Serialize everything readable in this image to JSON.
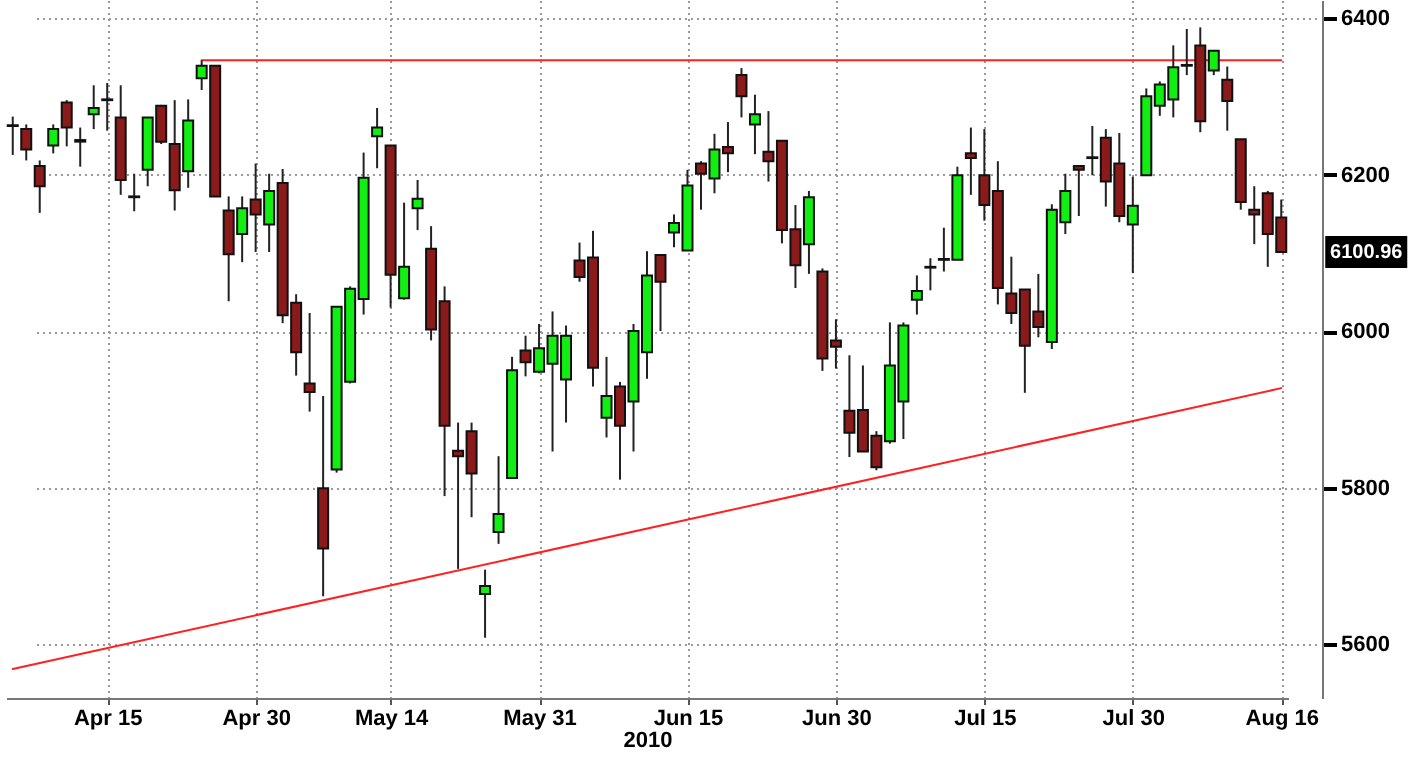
{
  "chart_data": {
    "type": "candlestick",
    "xlabel": "2010",
    "categories": [
      null,
      null,
      null,
      null,
      null,
      null,
      null,
      "Apr 15",
      null,
      null,
      null,
      null,
      null,
      null,
      null,
      null,
      null,
      null,
      "Apr 30",
      null,
      null,
      null,
      null,
      null,
      null,
      null,
      null,
      null,
      "May 14",
      null,
      null,
      null,
      null,
      null,
      null,
      null,
      null,
      null,
      null,
      "May 31",
      null,
      null,
      null,
      null,
      null,
      null,
      null,
      null,
      null,
      null,
      "Jun 15",
      null,
      null,
      null,
      null,
      null,
      null,
      null,
      null,
      null,
      null,
      "Jun 30",
      null,
      null,
      null,
      null,
      null,
      null,
      null,
      null,
      null,
      null,
      "Jul 15",
      null,
      null,
      null,
      null,
      null,
      null,
      null,
      null,
      null,
      null,
      "Jul 30",
      null,
      null,
      null,
      null,
      null,
      null,
      null,
      null,
      null,
      null,
      "Aug 16"
    ],
    "ohlc": [
      [
        6262,
        6274,
        6225,
        6263
      ],
      [
        6258,
        6264,
        6218,
        6232
      ],
      [
        6211,
        6218,
        6151,
        6185
      ],
      [
        6237,
        6264,
        6227,
        6258
      ],
      [
        6292,
        6295,
        6236,
        6260
      ],
      [
        6244,
        6260,
        6210,
        6242
      ],
      [
        6277,
        6314,
        6258,
        6285
      ],
      [
        6295,
        6317,
        6256,
        6296
      ],
      [
        6273,
        6314,
        6174,
        6193
      ],
      [
        6171,
        6201,
        6153,
        6172
      ],
      [
        6206,
        6273,
        6185,
        6273
      ],
      [
        6288,
        6289,
        6239,
        6242
      ],
      [
        6239,
        6295,
        6154,
        6180
      ],
      [
        6204,
        6296,
        6183,
        6269
      ],
      [
        6323,
        6346,
        6308,
        6339
      ],
      [
        6339,
        6339,
        6172,
        6172
      ],
      [
        6154,
        6172,
        6038,
        6098
      ],
      [
        6124,
        6172,
        6088,
        6157
      ],
      [
        6168,
        6214,
        6101,
        6149
      ],
      [
        6136,
        6201,
        6101,
        6179
      ],
      [
        6189,
        6207,
        6010,
        6020
      ],
      [
        6036,
        6047,
        5943,
        5973
      ],
      [
        5933,
        6023,
        5897,
        5922
      ],
      [
        5799,
        5917,
        5661,
        5722
      ],
      [
        5823,
        6031,
        5819,
        6031
      ],
      [
        5935,
        6057,
        5933,
        6054
      ],
      [
        6041,
        6228,
        6021,
        6196
      ],
      [
        6249,
        6285,
        6208,
        6260
      ],
      [
        6237,
        6237,
        6030,
        6072
      ],
      [
        6042,
        6164,
        6040,
        6082
      ],
      [
        6157,
        6193,
        6129,
        6169
      ],
      [
        6105,
        6134,
        5988,
        6002
      ],
      [
        6038,
        6057,
        5789,
        5879
      ],
      [
        5847,
        5883,
        5696,
        5840
      ],
      [
        5872,
        5883,
        5762,
        5818
      ],
      [
        5664,
        5695,
        5608,
        5674
      ],
      [
        5743,
        5840,
        5728,
        5766
      ],
      [
        5812,
        5967,
        5812,
        5950
      ],
      [
        5975,
        5994,
        5942,
        5960
      ],
      [
        5948,
        6009,
        5946,
        5978
      ],
      [
        5958,
        6025,
        5846,
        5994
      ],
      [
        5938,
        6007,
        5883,
        5994
      ],
      [
        6090,
        6113,
        6063,
        6069
      ],
      [
        6094,
        6128,
        5929,
        5953
      ],
      [
        5889,
        5967,
        5864,
        5917
      ],
      [
        5929,
        5935,
        5810,
        5879
      ],
      [
        5910,
        6009,
        5846,
        6000
      ],
      [
        5973,
        6102,
        5939,
        6071
      ],
      [
        6097,
        6097,
        6000,
        6063
      ],
      [
        6126,
        6149,
        6107,
        6138
      ],
      [
        6103,
        6206,
        6103,
        6186
      ],
      [
        6214,
        6217,
        6155,
        6201
      ],
      [
        6195,
        6252,
        6176,
        6232
      ],
      [
        6235,
        6267,
        6203,
        6227
      ],
      [
        6327,
        6336,
        6273,
        6300
      ],
      [
        6264,
        6302,
        6226,
        6277
      ],
      [
        6229,
        6281,
        6191,
        6217
      ],
      [
        6243,
        6243,
        6112,
        6129
      ],
      [
        6130,
        6161,
        6055,
        6084
      ],
      [
        6111,
        6179,
        6073,
        6171
      ],
      [
        6076,
        6080,
        5949,
        5965
      ],
      [
        5988,
        6015,
        5952,
        5980
      ],
      [
        5898,
        5969,
        5839,
        5870
      ],
      [
        5899,
        5956,
        5846,
        5846
      ],
      [
        5866,
        5872,
        5822,
        5826
      ],
      [
        5859,
        6011,
        5856,
        5956
      ],
      [
        5910,
        6011,
        5862,
        6007
      ],
      [
        6040,
        6071,
        6021,
        6051
      ],
      [
        6082,
        6093,
        6052,
        6081
      ],
      [
        6092,
        6132,
        6076,
        6091
      ],
      [
        6091,
        6210,
        6091,
        6199
      ],
      [
        6227,
        6260,
        6174,
        6221
      ],
      [
        6199,
        6258,
        6141,
        6161
      ],
      [
        6179,
        6217,
        6034,
        6055
      ],
      [
        6048,
        6095,
        6009,
        6023
      ],
      [
        6053,
        6053,
        5921,
        5981
      ],
      [
        6025,
        6073,
        5992,
        6005
      ],
      [
        5986,
        6162,
        5977,
        6155
      ],
      [
        6139,
        6201,
        6124,
        6179
      ],
      [
        6211,
        6212,
        6147,
        6206
      ],
      [
        6222,
        6262,
        6199,
        6221
      ],
      [
        6247,
        6258,
        6159,
        6191
      ],
      [
        6214,
        6253,
        6139,
        6147
      ],
      [
        6136,
        6197,
        6074,
        6160
      ],
      [
        6199,
        6310,
        6199,
        6300
      ],
      [
        6288,
        6319,
        6275,
        6315
      ],
      [
        6296,
        6365,
        6273,
        6337
      ],
      [
        6339,
        6386,
        6327,
        6340
      ],
      [
        6365,
        6388,
        6254,
        6268
      ],
      [
        6333,
        6358,
        6327,
        6358
      ],
      [
        6321,
        6338,
        6256,
        6294
      ],
      [
        6245,
        6245,
        6155,
        6165
      ],
      [
        6155,
        6185,
        6111,
        6149
      ],
      [
        6176,
        6179,
        6082,
        6124
      ],
      [
        6145,
        6168,
        6100,
        6101
      ]
    ],
    "colors": [
      "#11ee11",
      "#8b1a1a",
      "#8b1a1a",
      "#11ee11",
      "#8b1a1a",
      "#8b1a1a",
      "#11ee11",
      "#11ee11",
      "#8b1a1a",
      "#11ee11",
      "#11ee11",
      "#8b1a1a",
      "#8b1a1a",
      "#11ee11",
      "#11ee11",
      "#8b1a1a",
      "#8b1a1a",
      "#11ee11",
      "#8b1a1a",
      "#11ee11",
      "#8b1a1a",
      "#8b1a1a",
      "#8b1a1a",
      "#8b1a1a",
      "#11ee11",
      "#11ee11",
      "#11ee11",
      "#11ee11",
      "#8b1a1a",
      "#11ee11",
      "#11ee11",
      "#8b1a1a",
      "#8b1a1a",
      "#8b1a1a",
      "#8b1a1a",
      "#11ee11",
      "#11ee11",
      "#11ee11",
      "#8b1a1a",
      "#11ee11",
      "#11ee11",
      "#11ee11",
      "#8b1a1a",
      "#8b1a1a",
      "#11ee11",
      "#8b1a1a",
      "#11ee11",
      "#11ee11",
      "#8b1a1a",
      "#11ee11",
      "#11ee11",
      "#8b1a1a",
      "#11ee11",
      "#8b1a1a",
      "#8b1a1a",
      "#11ee11",
      "#8b1a1a",
      "#8b1a1a",
      "#8b1a1a",
      "#11ee11",
      "#8b1a1a",
      "#8b1a1a",
      "#8b1a1a",
      "#8b1a1a",
      "#8b1a1a",
      "#11ee11",
      "#11ee11",
      "#11ee11",
      "#8b1a1a",
      "#8b1a1a",
      "#11ee11",
      "#8b1a1a",
      "#8b1a1a",
      "#8b1a1a",
      "#8b1a1a",
      "#8b1a1a",
      "#8b1a1a",
      "#11ee11",
      "#11ee11",
      "#8b1a1a",
      "#8b1a1a",
      "#8b1a1a",
      "#8b1a1a",
      "#11ee11",
      "#11ee11",
      "#11ee11",
      "#11ee11",
      "#11ee11",
      "#8b1a1a",
      "#11ee11",
      "#8b1a1a",
      "#8b1a1a",
      "#8b1a1a",
      "#8b1a1a",
      "#8b1a1a"
    ],
    "series": [
      {
        "type": "line",
        "color": "#ff2020",
        "values": [
          null,
          null,
          null,
          null,
          null,
          null,
          null,
          null,
          null,
          null,
          null,
          null,
          null,
          null,
          6346,
          6346,
          6346,
          6346,
          6346,
          6346,
          6346,
          6346,
          6346,
          6346,
          6346,
          6346,
          6346,
          6346,
          6346,
          6346,
          6346,
          6346,
          6346,
          6346,
          6346,
          6346,
          6346,
          6346,
          6346,
          6346,
          6346,
          6346,
          6346,
          6346,
          6346,
          6346,
          6346,
          6346,
          6346,
          6346,
          6346,
          6346,
          6346,
          6346,
          6346,
          6346,
          6346,
          6346,
          6346,
          6346,
          6346,
          6346,
          6346,
          6346,
          6346,
          6346,
          6346,
          6346,
          6346,
          6346,
          6346,
          6346,
          6346,
          6346,
          6346,
          6346,
          6346,
          6346,
          6346,
          6346,
          6346,
          6346,
          6346,
          6346,
          6346,
          6346,
          6346,
          6346,
          6346,
          6346,
          6346,
          6346,
          6346,
          6346,
          6346
        ]
      },
      {
        "type": "line",
        "color": "#ff2020",
        "values": [
          5568,
          null,
          null,
          null,
          null,
          null,
          null,
          null,
          null,
          null,
          null,
          null,
          null,
          null,
          null,
          null,
          null,
          null,
          null,
          null,
          null,
          null,
          null,
          null,
          null,
          null,
          null,
          null,
          null,
          null,
          null,
          null,
          null,
          null,
          null,
          null,
          null,
          null,
          null,
          null,
          null,
          null,
          null,
          null,
          null,
          null,
          null,
          null,
          null,
          null,
          null,
          null,
          null,
          null,
          null,
          null,
          null,
          null,
          null,
          null,
          null,
          null,
          null,
          null,
          null,
          null,
          null,
          null,
          null,
          null,
          null,
          null,
          null,
          null,
          null,
          null,
          null,
          null,
          null,
          null,
          null,
          null,
          null,
          null,
          null,
          null,
          null,
          null,
          null,
          null,
          null,
          null,
          null,
          null,
          5927
        ]
      }
    ],
    "ylim": [
      5531,
      6423
    ],
    "yticks": [
      5600,
      5800,
      6000,
      6200,
      6400
    ],
    "grid": true,
    "annotations": [
      {
        "text": "6100.96",
        "x": "Aug 16",
        "y": 6100.96
      }
    ]
  }
}
